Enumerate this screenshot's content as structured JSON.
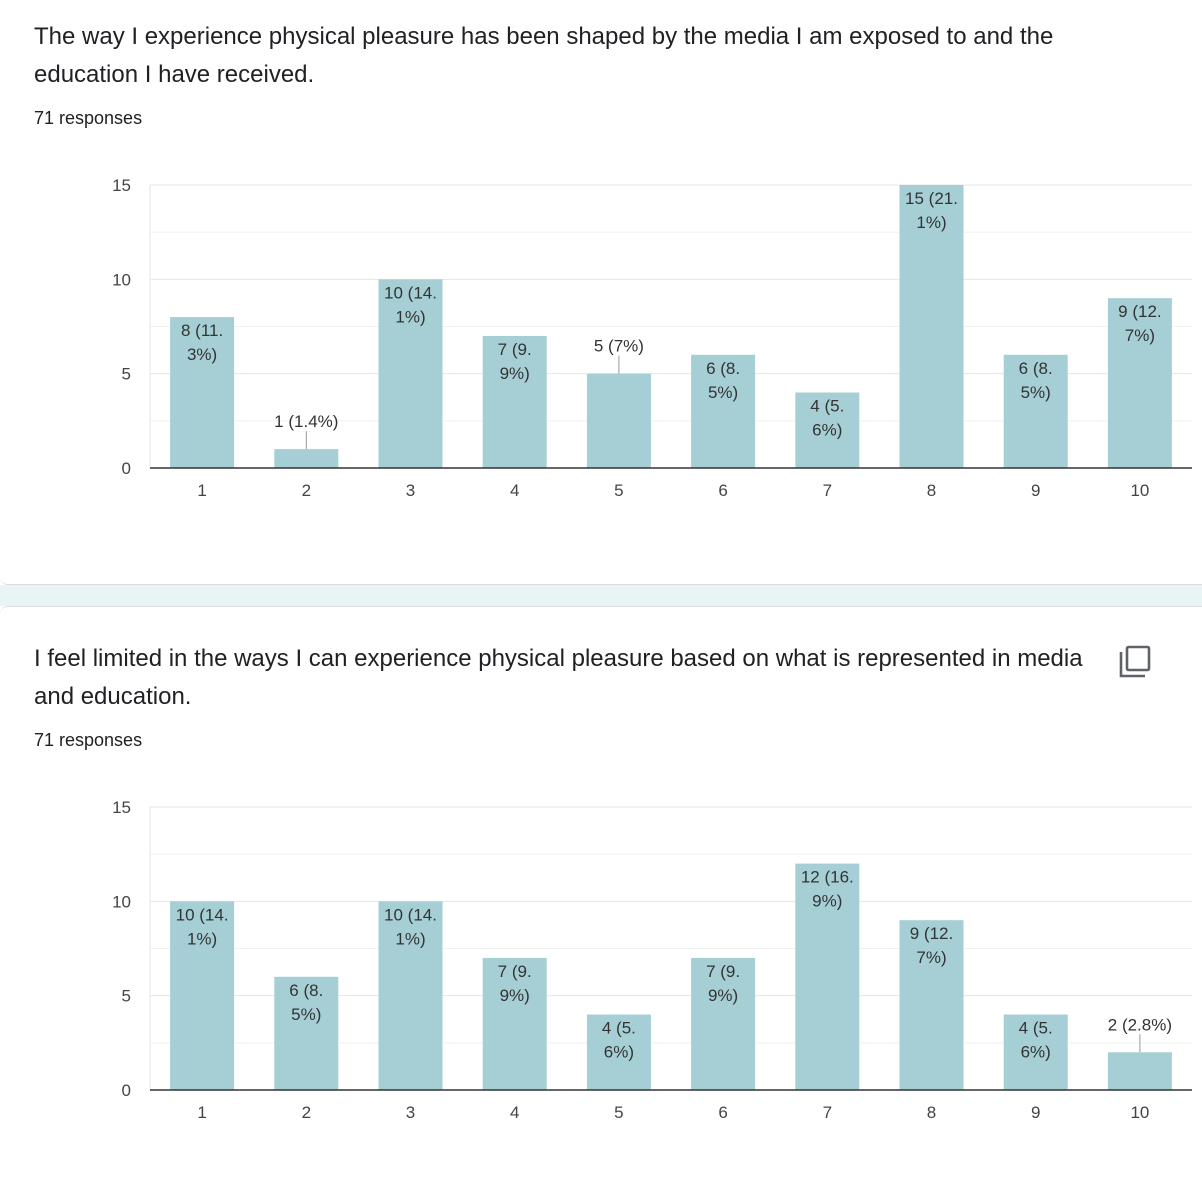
{
  "questions": [
    {
      "title": "The way I experience physical pleasure has been shaped by the media I am exposed to and the education I have received.",
      "responses": "71 responses",
      "chart_data": {
        "type": "bar",
        "categories": [
          "1",
          "2",
          "3",
          "4",
          "5",
          "6",
          "7",
          "8",
          "9",
          "10"
        ],
        "values": [
          8,
          1,
          10,
          7,
          5,
          6,
          4,
          15,
          6,
          9
        ],
        "data_labels": [
          [
            "8 (11.",
            "3%)"
          ],
          [
            "1 (1.4%)"
          ],
          [
            "10 (14.",
            "1%)"
          ],
          [
            "7 (9.",
            "9%)"
          ],
          [
            "5 (7%)"
          ],
          [
            "6 (8.",
            "5%)"
          ],
          [
            "4 (5.",
            "6%)"
          ],
          [
            "15 (21.",
            "1%)"
          ],
          [
            "6 (8.",
            "5%)"
          ],
          [
            "9 (12.",
            "7%)"
          ]
        ],
        "y_ticks": [
          "0",
          "5",
          "10",
          "15"
        ],
        "ylim": [
          0,
          15
        ],
        "grid": true,
        "bar_color": "#a5cfd5"
      }
    },
    {
      "title": "I feel limited in the ways I can experience physical pleasure based on what is represented in media and education.",
      "responses": "71 responses",
      "copy_icon": "copy-icon",
      "chart_data": {
        "type": "bar",
        "categories": [
          "1",
          "2",
          "3",
          "4",
          "5",
          "6",
          "7",
          "8",
          "9",
          "10"
        ],
        "values": [
          10,
          6,
          10,
          7,
          4,
          7,
          12,
          9,
          4,
          2
        ],
        "data_labels": [
          [
            "10 (14.",
            "1%)"
          ],
          [
            "6 (8.",
            "5%)"
          ],
          [
            "10 (14.",
            "1%)"
          ],
          [
            "7 (9.",
            "9%)"
          ],
          [
            "4 (5.",
            "6%)"
          ],
          [
            "7 (9.",
            "9%)"
          ],
          [
            "12 (16.",
            "9%)"
          ],
          [
            "9 (12.",
            "7%)"
          ],
          [
            "4 (5.",
            "6%)"
          ],
          [
            "2 (2.8%)"
          ]
        ],
        "y_ticks": [
          "0",
          "5",
          "10",
          "15"
        ],
        "ylim": [
          0,
          15
        ],
        "grid": true,
        "bar_color": "#a5cfd5"
      }
    }
  ]
}
